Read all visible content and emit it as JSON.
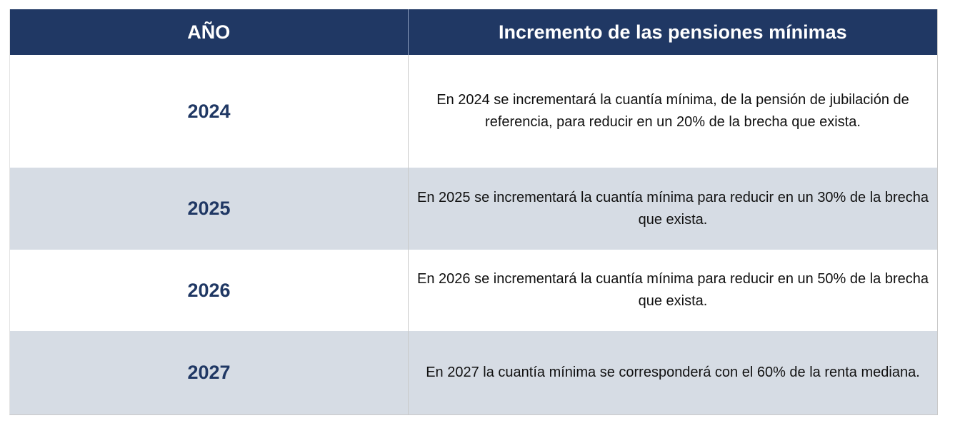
{
  "table": {
    "headers": {
      "year": "AÑO",
      "description": "Incremento de las pensiones mínimas"
    },
    "rows": [
      {
        "year": "2024",
        "text": "En 2024 se incrementará la cuantía mínima, de la pensión de jubilación de referencia, para reducir en un 20% de la brecha que exista."
      },
      {
        "year": "2025",
        "text": "En 2025 se incrementará la cuantía mínima para reducir en un 30% de la brecha que exista."
      },
      {
        "year": "2026",
        "text": "En 2026 se incrementará la cuantía mínima  para reducir en un 50% de la brecha que exista."
      },
      {
        "year": "2027",
        "text": "En 2027 la cuantía mínima se corresponderá con el 60% de la renta mediana."
      }
    ]
  },
  "colors": {
    "header_bg": "#203864",
    "alt_row_bg": "#d6dce4",
    "year_text": "#203864"
  }
}
